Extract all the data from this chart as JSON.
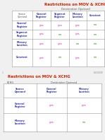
{
  "title1": "Restrictions on MOV & XCHG",
  "title1_color": "#cc2200",
  "table1_dest_label": "Destination Operand",
  "table1_src_label": "Source\nOperand",
  "table1_col_headers": [
    "General\nRegister",
    "Segment\nRegister",
    "Memory\nLocation",
    "Constant"
  ],
  "table1_row_labels": [
    "General\nRegister",
    "Segment\nRegister",
    "Memory\nLocation",
    "Constant"
  ],
  "table1_data": [
    [
      "yes",
      "yes",
      "yes",
      "no"
    ],
    [
      "yes",
      "no",
      "yes",
      "no"
    ],
    [
      "yes",
      "yes",
      "no",
      "no"
    ],
    [
      "yes",
      "no",
      "yes",
      "no"
    ]
  ],
  "title2": "Restrictions on MOV & XCHG",
  "title2_color": "#cc2200",
  "table2_xchg_label": "XCHG",
  "table2_dest_label": "Destination Operand",
  "table2_col_headers": [
    "Source\nOperand",
    "General\nRegister",
    "Memory\nLocation"
  ],
  "table2_row_labels": [
    "General\nRegister",
    "Memory\nLocation"
  ],
  "table2_data": [
    [
      "yes",
      "yes"
    ],
    [
      "yes",
      "no"
    ]
  ],
  "yes_color": "#dd00bb",
  "no_color": "#228800",
  "header_color": "#3333bb",
  "row_label_color": "#3333bb",
  "grid_color": "#999999",
  "bg_color": "#f0f0f0",
  "cell_bg": "#ffffff"
}
